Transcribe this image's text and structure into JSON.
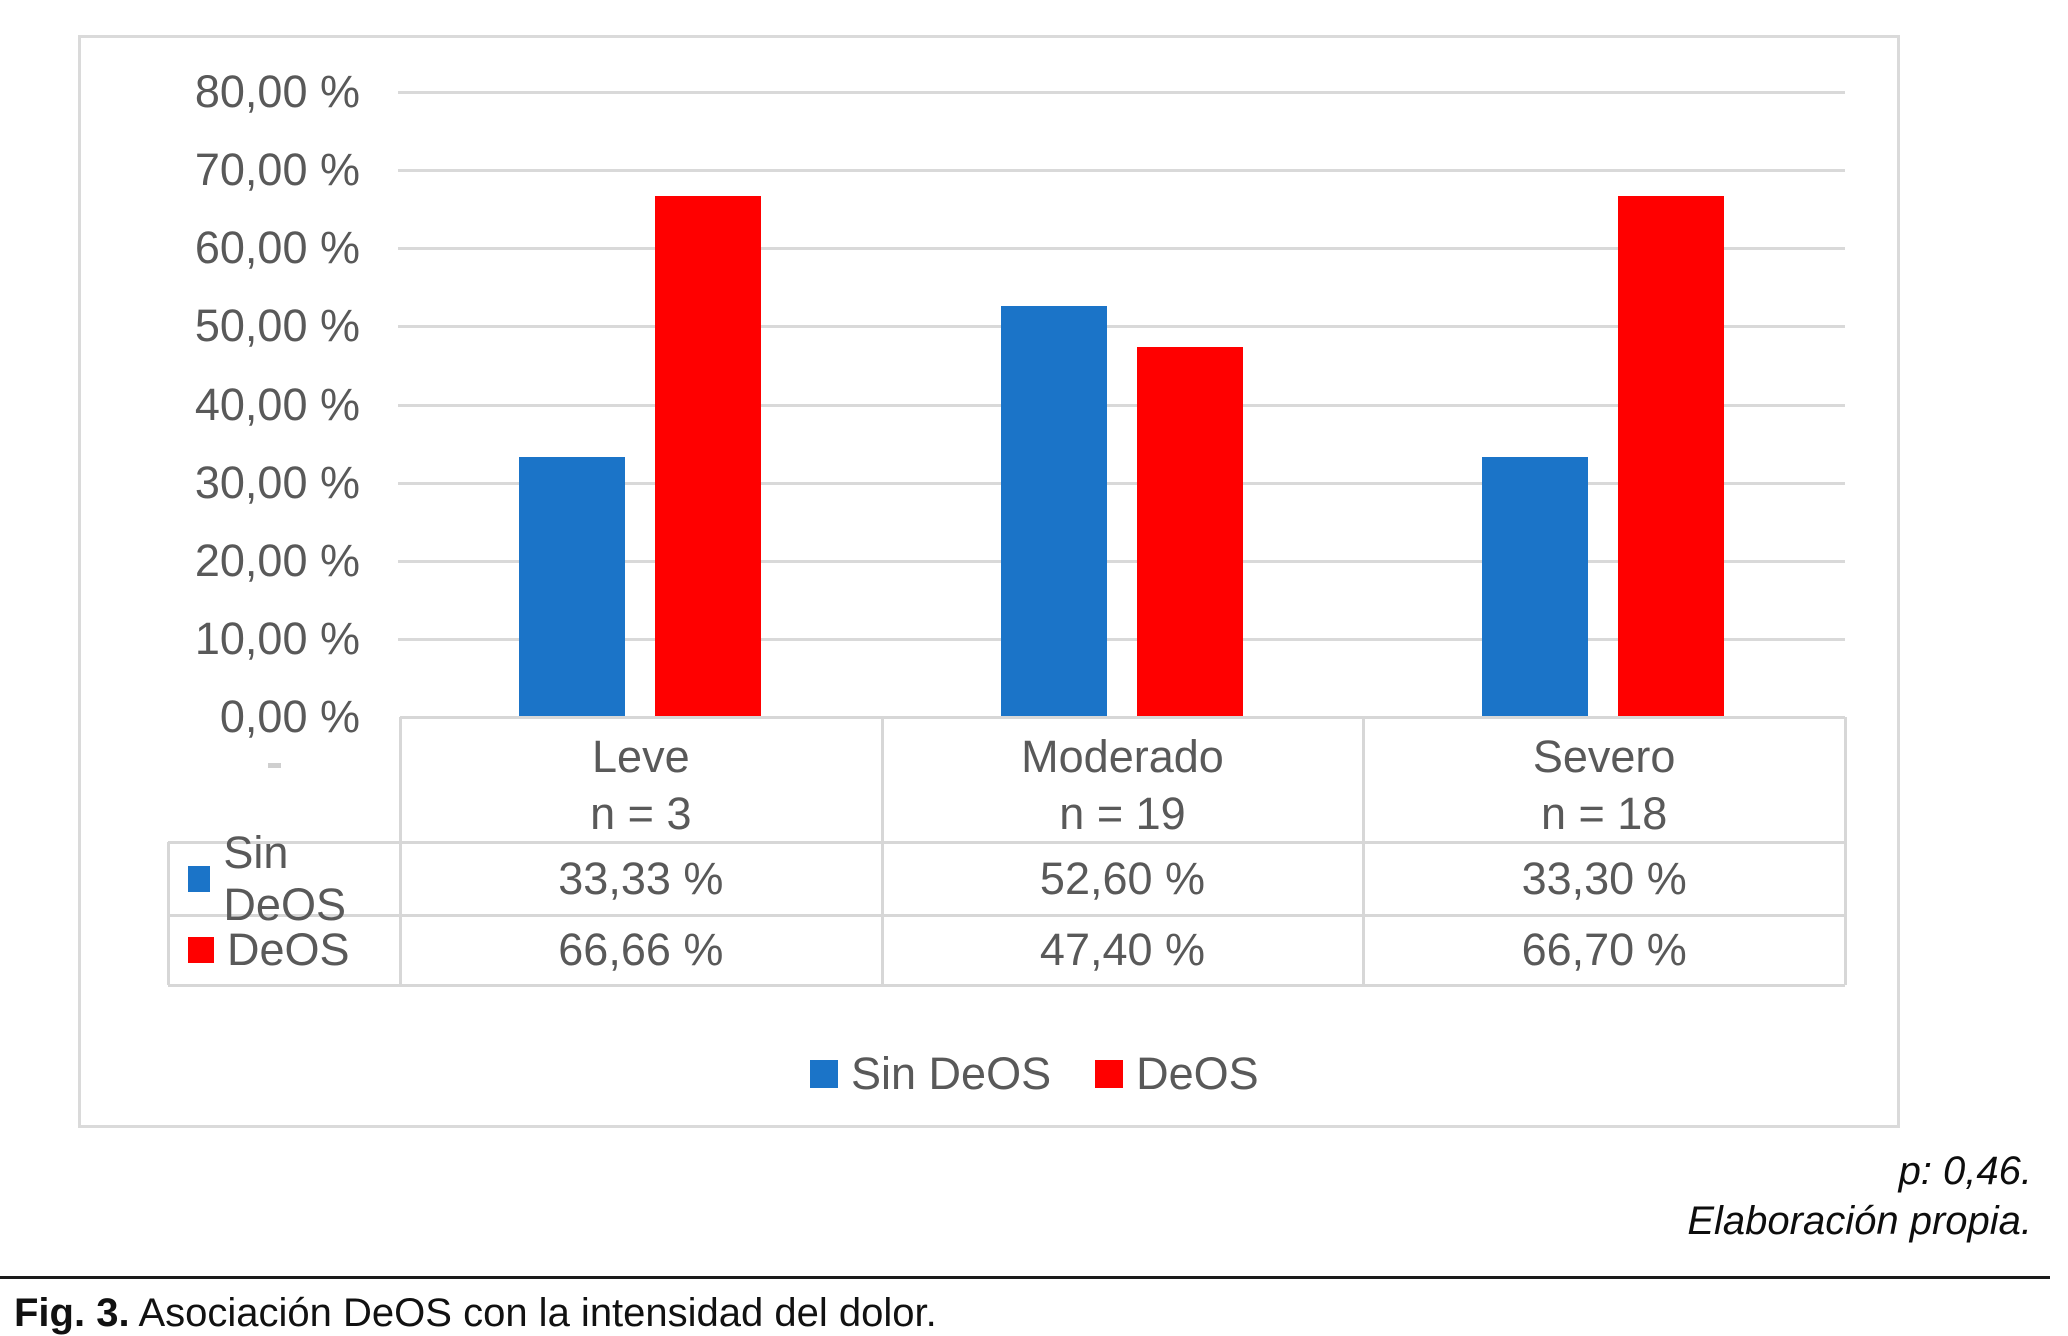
{
  "figure": {
    "caption_label": "Fig. 3.",
    "caption_text": " Asociación DeOS con la intensidad del dolor.",
    "p_value_note": "p: 0,46.",
    "source_note": "Elaboración propia."
  },
  "chart_data": {
    "type": "bar",
    "title": "",
    "categories": [
      "Leve",
      "Moderado",
      "Severo"
    ],
    "category_counts": [
      "n = 3",
      "n = 19",
      "n = 18"
    ],
    "series": [
      {
        "name": "Sin DeOS",
        "color": "#1B74C8",
        "values": [
          33.33,
          52.6,
          33.3
        ],
        "value_labels": [
          "33,33 %",
          "52,60 %",
          "33,30 %"
        ]
      },
      {
        "name": "DeOS",
        "color": "#FF0000",
        "values": [
          66.66,
          47.4,
          66.7
        ],
        "value_labels": [
          "66,66 %",
          "47,40 %",
          "66,70 %"
        ]
      }
    ],
    "y_axis": {
      "min": 0,
      "max": 80,
      "tick_step": 10,
      "tick_labels": [
        "0,00 %",
        "10,00 %",
        "20,00 %",
        "30,00 %",
        "40,00 %",
        "50,00 %",
        "60,00 %",
        "70,00 %",
        "80,00 %"
      ]
    },
    "grid": true,
    "legend_position": "bottom",
    "data_table_shown": true,
    "text_color": "#595959",
    "grid_color": "#D9D9D9"
  }
}
